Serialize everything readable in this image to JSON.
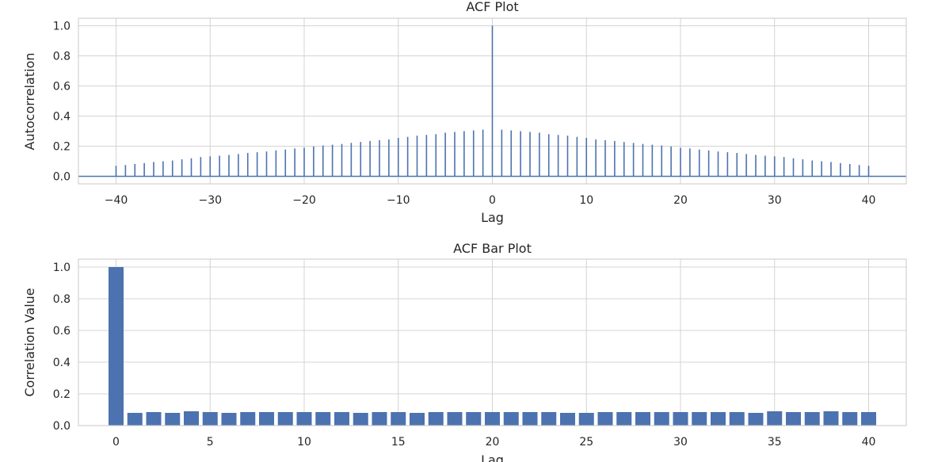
{
  "colors": {
    "series": "#4c72b0",
    "grid": "#d4d4d4",
    "background": "#ffffff",
    "text": "#262626"
  },
  "chart_data": [
    {
      "type": "stem",
      "title": "ACF Plot",
      "xlabel": "Lag",
      "ylabel": "Autocorrelation",
      "xlim": [
        -44,
        44
      ],
      "ylim": [
        -0.05,
        1.05
      ],
      "xticks": [
        -40,
        -30,
        -20,
        -10,
        0,
        10,
        20,
        30,
        40
      ],
      "xtick_labels": [
        "−40",
        "−30",
        "−20",
        "−10",
        "0",
        "10",
        "20",
        "30",
        "40"
      ],
      "yticks": [
        0.0,
        0.2,
        0.4,
        0.6,
        0.8,
        1.0
      ],
      "ytick_labels": [
        "0.0",
        "0.2",
        "0.4",
        "0.6",
        "0.8",
        "1.0"
      ],
      "grid": true,
      "x": [
        -40,
        -39,
        -38,
        -37,
        -36,
        -35,
        -34,
        -33,
        -32,
        -31,
        -30,
        -29,
        -28,
        -27,
        -26,
        -25,
        -24,
        -23,
        -22,
        -21,
        -20,
        -19,
        -18,
        -17,
        -16,
        -15,
        -14,
        -13,
        -12,
        -11,
        -10,
        -9,
        -8,
        -7,
        -6,
        -5,
        -4,
        -3,
        -2,
        -1,
        0,
        1,
        2,
        3,
        4,
        5,
        6,
        7,
        8,
        9,
        10,
        11,
        12,
        13,
        14,
        15,
        16,
        17,
        18,
        19,
        20,
        21,
        22,
        23,
        24,
        25,
        26,
        27,
        28,
        29,
        30,
        31,
        32,
        33,
        34,
        35,
        36,
        37,
        38,
        39,
        40
      ],
      "values": [
        0.07,
        0.075,
        0.082,
        0.088,
        0.095,
        0.1,
        0.105,
        0.113,
        0.12,
        0.128,
        0.133,
        0.137,
        0.142,
        0.148,
        0.155,
        0.16,
        0.165,
        0.172,
        0.178,
        0.185,
        0.19,
        0.198,
        0.205,
        0.21,
        0.215,
        0.222,
        0.228,
        0.235,
        0.24,
        0.245,
        0.255,
        0.262,
        0.27,
        0.275,
        0.28,
        0.29,
        0.295,
        0.3,
        0.305,
        0.31,
        1.0,
        0.31,
        0.305,
        0.3,
        0.295,
        0.29,
        0.28,
        0.275,
        0.27,
        0.262,
        0.255,
        0.245,
        0.24,
        0.235,
        0.228,
        0.222,
        0.215,
        0.21,
        0.205,
        0.198,
        0.19,
        0.185,
        0.178,
        0.172,
        0.165,
        0.16,
        0.155,
        0.148,
        0.142,
        0.137,
        0.133,
        0.128,
        0.12,
        0.113,
        0.105,
        0.1,
        0.095,
        0.088,
        0.082,
        0.075,
        0.07
      ]
    },
    {
      "type": "bar",
      "title": "ACF Bar Plot",
      "xlabel": "Lag",
      "ylabel": "Correlation Value",
      "xlim": [
        -2,
        42
      ],
      "ylim": [
        0,
        1.05
      ],
      "xticks": [
        0,
        5,
        10,
        15,
        20,
        25,
        30,
        35,
        40
      ],
      "xtick_labels": [
        "0",
        "5",
        "10",
        "15",
        "20",
        "25",
        "30",
        "35",
        "40"
      ],
      "yticks": [
        0.0,
        0.2,
        0.4,
        0.6,
        0.8,
        1.0
      ],
      "ytick_labels": [
        "0.0",
        "0.2",
        "0.4",
        "0.6",
        "0.8",
        "1.0"
      ],
      "grid": true,
      "categories": [
        0,
        1,
        2,
        3,
        4,
        5,
        6,
        7,
        8,
        9,
        10,
        11,
        12,
        13,
        14,
        15,
        16,
        17,
        18,
        19,
        20,
        21,
        22,
        23,
        24,
        25,
        26,
        27,
        28,
        29,
        30,
        31,
        32,
        33,
        34,
        35,
        36,
        37,
        38,
        39,
        40
      ],
      "values": [
        1.0,
        0.08,
        0.085,
        0.08,
        0.09,
        0.085,
        0.08,
        0.085,
        0.085,
        0.085,
        0.085,
        0.085,
        0.085,
        0.08,
        0.085,
        0.085,
        0.08,
        0.085,
        0.085,
        0.085,
        0.085,
        0.085,
        0.085,
        0.085,
        0.08,
        0.08,
        0.085,
        0.085,
        0.085,
        0.085,
        0.085,
        0.085,
        0.085,
        0.085,
        0.08,
        0.09,
        0.085,
        0.085,
        0.09,
        0.085,
        0.085
      ]
    }
  ]
}
